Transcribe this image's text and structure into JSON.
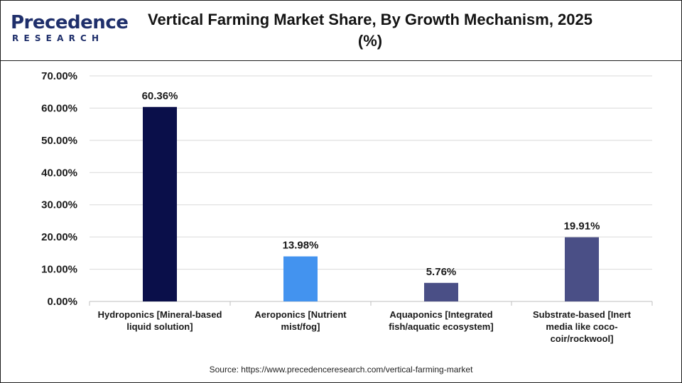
{
  "header": {
    "logo_main": "Precedence",
    "logo_sub": "RESEARCH",
    "title": "Vertical Farming Market Share, By Growth Mechanism, 2025 (%)"
  },
  "source": "Source: https://www.precedenceresearch.com/vertical-farming-market",
  "colors": {
    "bar_colors": [
      "#0a0f4a",
      "#4393ef",
      "#4a4f86",
      "#4a4f86"
    ],
    "grid": "#d9d9d9",
    "axis": "#bfbfbf"
  },
  "chart_data": {
    "type": "bar",
    "title": "Vertical Farming Market Share, By Growth Mechanism, 2025 (%)",
    "categories": [
      [
        "Hydroponics [Mineral-based",
        "liquid solution]"
      ],
      [
        "Aeroponics [Nutrient",
        "mist/fog]"
      ],
      [
        "Aquaponics [Integrated",
        "fish/aquatic ecosystem]"
      ],
      [
        "Substrate-based [Inert",
        "media like coco-",
        "coir/rockwool]"
      ]
    ],
    "values": [
      60.36,
      13.98,
      5.76,
      19.91
    ],
    "value_labels": [
      "60.36%",
      "13.98%",
      "5.76%",
      "19.91%"
    ],
    "ylim": [
      0,
      70
    ],
    "yticks": [
      0,
      10,
      20,
      30,
      40,
      50,
      60,
      70
    ],
    "ytick_labels": [
      "0.00%",
      "10.00%",
      "20.00%",
      "30.00%",
      "40.00%",
      "50.00%",
      "60.00%",
      "70.00%"
    ],
    "grid": true,
    "legend": "none"
  }
}
